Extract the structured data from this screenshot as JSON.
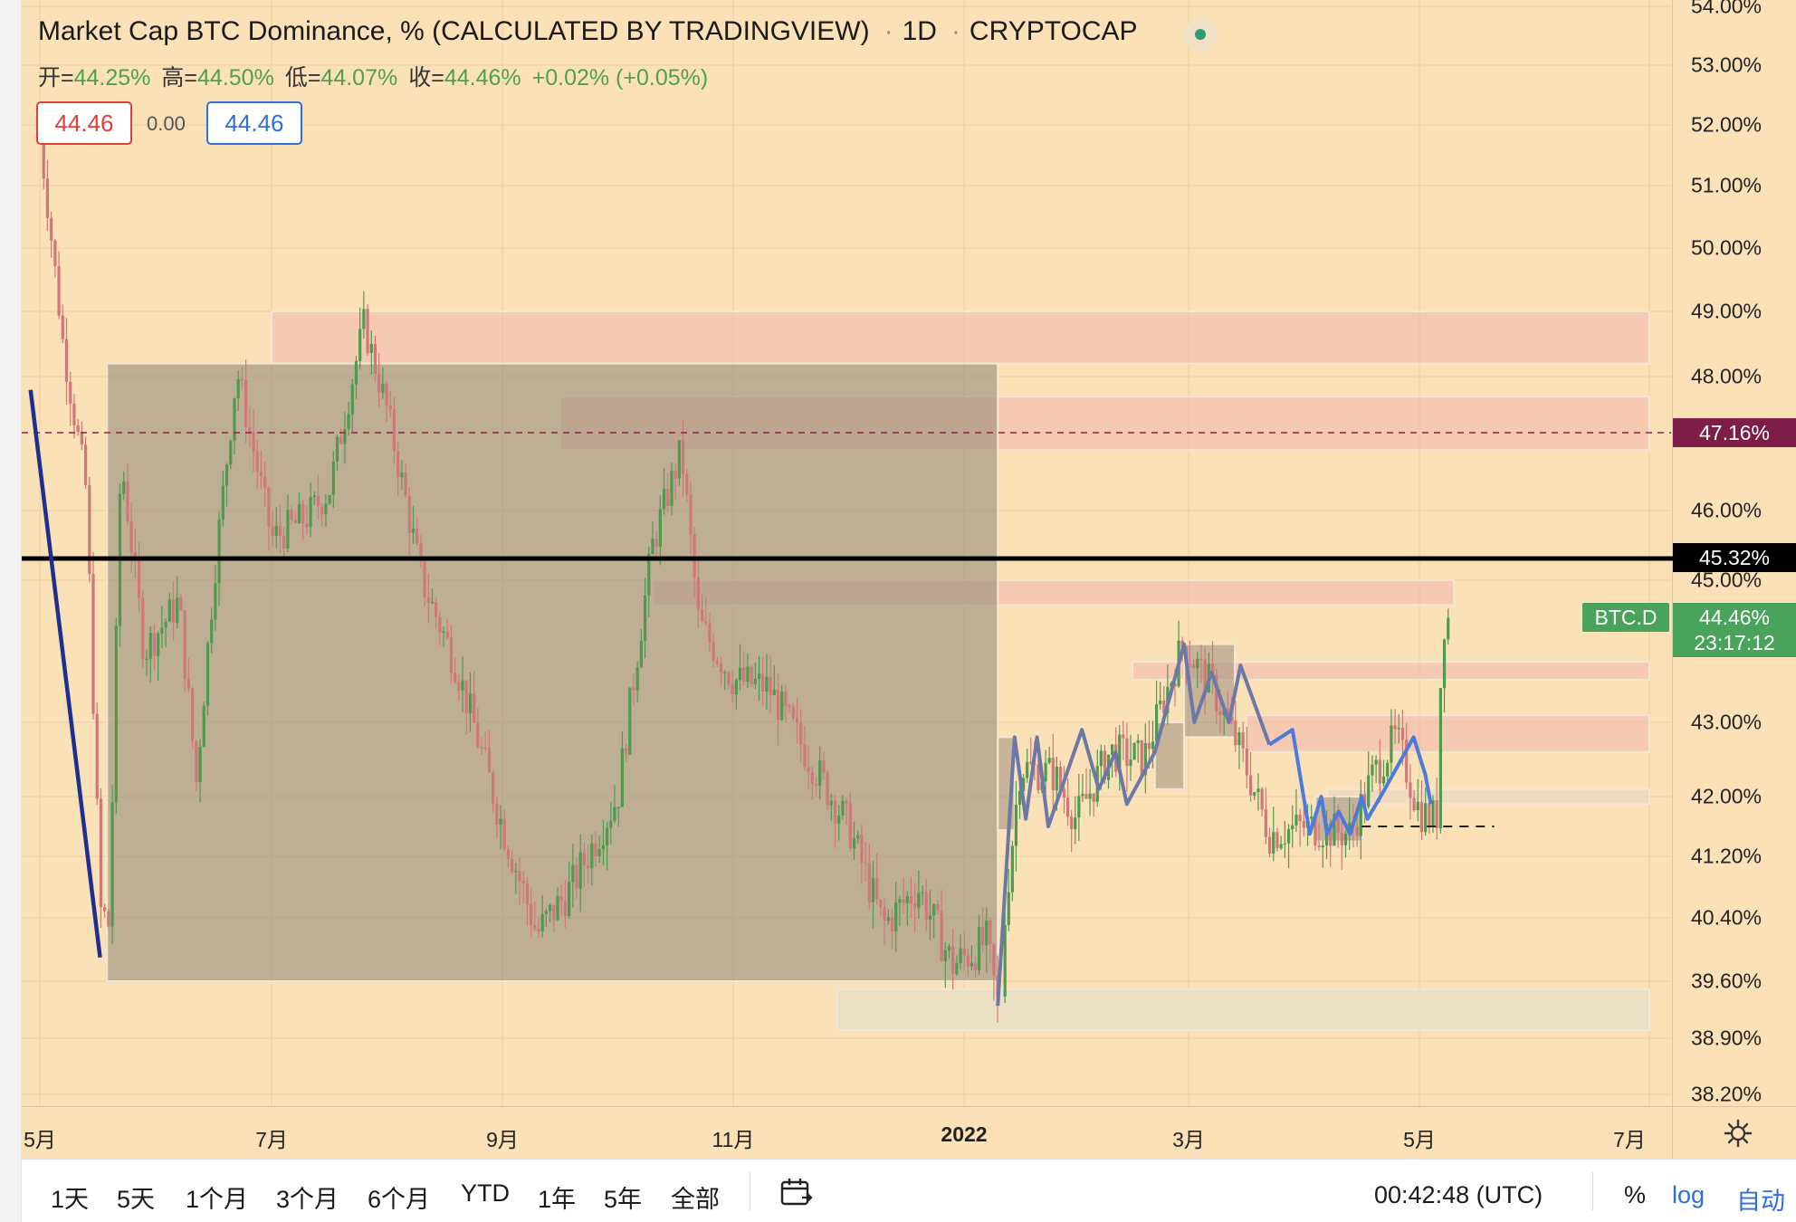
{
  "legend": {
    "title": "Market Cap BTC Dominance, % (CALCULATED BY TRADINGVIEW)",
    "interval": "1D",
    "exchange": "CRYPTOCAP",
    "open_label": "开=",
    "open_value": "44.25%",
    "high_label": "高=",
    "high_value": "44.50%",
    "low_label": "低=",
    "low_value": "44.07%",
    "close_label": "收=",
    "close_value": "44.46%",
    "change": "+0.02% (+0.05%)"
  },
  "inputs": {
    "left_value": "44.46",
    "middle_value": "0.00",
    "right_value": "44.46"
  },
  "price_axis": {
    "ticks": [
      "54.00%",
      "53.00%",
      "52.00%",
      "51.00%",
      "50.00%",
      "49.00%",
      "48.00%",
      "47.16%",
      "46.00%",
      "45.00%",
      "43.00%",
      "42.00%",
      "41.20%",
      "40.40%",
      "39.60%",
      "38.90%",
      "38.20%"
    ],
    "scale": "log"
  },
  "time_axis": {
    "ticks": [
      "5月",
      "7月",
      "9月",
      "11月",
      "2022",
      "3月",
      "5月",
      "7月"
    ]
  },
  "price_labels": {
    "dashed_level": "47.16%",
    "horizontal_level": "45.32%",
    "symbol": "BTC.D",
    "last_price": "44.46%",
    "countdown": "23:17:12"
  },
  "colors": {
    "background": "#fae1b8",
    "up_candle": "#4f9a4f",
    "down_candle": "#d07777",
    "zone_red": "#f2b8ad",
    "zone_gray": "#9a8e7e",
    "trendline": "#1f2f8f",
    "zigzag": "#4c7bdc"
  },
  "toolbar": {
    "ranges": [
      "1天",
      "5天",
      "1个月",
      "3个月",
      "6个月",
      "YTD",
      "1年",
      "5年",
      "全部"
    ],
    "calendar_icon": "calendar-range-icon",
    "time": "00:42:48 (UTC)",
    "percent": "%",
    "log": "log",
    "auto": "自动"
  },
  "chart_data": {
    "type": "candlestick",
    "title": "Market Cap BTC Dominance, % (CALCULATED BY TRADINGVIEW)",
    "interval": "1D",
    "ylim": [
      38.2,
      54.0
    ],
    "series": [
      {
        "name": "BTC.D",
        "x": [
          "2021-05",
          "2021-06",
          "2021-07",
          "2021-08",
          "2021-09",
          "2021-10",
          "2021-11",
          "2021-12",
          "2022-01",
          "2022-02",
          "2022-03",
          "2022-04",
          "2022-05"
        ],
        "values": [
          40.2,
          45.5,
          46.5,
          47.5,
          39.8,
          46.5,
          43.5,
          40.5,
          39.3,
          42.6,
          44.0,
          41.2,
          44.46
        ]
      }
    ]
  }
}
